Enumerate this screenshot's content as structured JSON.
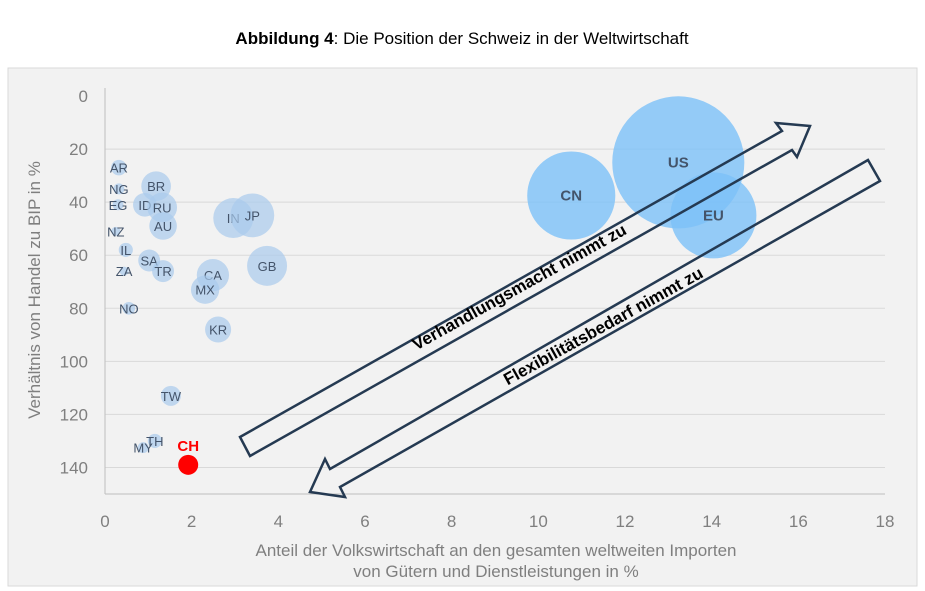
{
  "chart_data": {
    "type": "bubble",
    "title_bold": "Abbildung 4",
    "title_rest": ": Die Position der Schweiz in der Weltwirtschaft",
    "xlabel_line1": "Anteil der Volkswirtschaft an den gesamten weltweiten Importen",
    "xlabel_line2": "von Gütern und Dienstleistungen in %",
    "ylabel": "Verhältnis von Handel zu BIP in %",
    "xlim": [
      0,
      18
    ],
    "ylim": [
      0,
      150
    ],
    "y_reversed": true,
    "x_ticks": [
      0,
      2,
      4,
      6,
      8,
      10,
      12,
      14,
      16,
      18
    ],
    "y_ticks": [
      0,
      20,
      40,
      60,
      80,
      100,
      120,
      140
    ],
    "grid": "horizontal",
    "colors": {
      "small": "#a9cbec",
      "large": "#7cc1f7",
      "highlight": "#ff0000",
      "arrow": "#253a52",
      "background": "#f2f2f2"
    },
    "points": [
      {
        "label": "AR",
        "x": 0.32,
        "y": 27,
        "size": 0.6
      },
      {
        "label": "NG",
        "x": 0.32,
        "y": 35,
        "size": 0.3
      },
      {
        "label": "EG",
        "x": 0.3,
        "y": 41,
        "size": 0.3
      },
      {
        "label": "BR",
        "x": 1.18,
        "y": 34,
        "size": 2.2
      },
      {
        "label": "ID",
        "x": 0.92,
        "y": 41,
        "size": 1.4
      },
      {
        "label": "RU",
        "x": 1.32,
        "y": 42,
        "size": 2.2
      },
      {
        "label": "AU",
        "x": 1.34,
        "y": 49,
        "size": 1.9
      },
      {
        "label": "NZ",
        "x": 0.25,
        "y": 51,
        "size": 0.2
      },
      {
        "label": "IL",
        "x": 0.48,
        "y": 58,
        "size": 0.5
      },
      {
        "label": "SA",
        "x": 1.02,
        "y": 62,
        "size": 1.2
      },
      {
        "label": "ZA",
        "x": 0.44,
        "y": 66,
        "size": 0.2
      },
      {
        "label": "TR",
        "x": 1.34,
        "y": 66,
        "size": 1.2
      },
      {
        "label": "IN",
        "x": 2.96,
        "y": 46,
        "size": 4.0
      },
      {
        "label": "JP",
        "x": 3.4,
        "y": 45,
        "size": 4.8
      },
      {
        "label": "GB",
        "x": 3.74,
        "y": 64,
        "size": 4.0
      },
      {
        "label": "CA",
        "x": 2.49,
        "y": 67.5,
        "size": 2.6
      },
      {
        "label": "MX",
        "x": 2.31,
        "y": 73,
        "size": 2.0
      },
      {
        "label": "NO",
        "x": 0.55,
        "y": 80,
        "size": 0.4
      },
      {
        "label": "KR",
        "x": 2.61,
        "y": 88,
        "size": 1.7
      },
      {
        "label": "TW",
        "x": 1.52,
        "y": 113,
        "size": 1.0
      },
      {
        "label": "TH",
        "x": 1.15,
        "y": 130,
        "size": 0.5
      },
      {
        "label": "MY",
        "x": 0.88,
        "y": 132.5,
        "size": 0.3
      },
      {
        "label": "CN",
        "x": 10.76,
        "y": 37.5,
        "size": 19.4,
        "group": "large"
      },
      {
        "label": "US",
        "x": 13.23,
        "y": 25,
        "size": 43.6,
        "group": "large"
      },
      {
        "label": "EU",
        "x": 14.04,
        "y": 45,
        "size": 18.5,
        "group": "large"
      },
      {
        "label": "CH",
        "x": 1.92,
        "y": 139,
        "size": 1.0,
        "group": "highlight"
      }
    ],
    "annotations": {
      "arrow_up": "Verhandlungsmacht nimmt zu",
      "arrow_down": "Flexibilitätsbedarf nimmt zu"
    }
  }
}
